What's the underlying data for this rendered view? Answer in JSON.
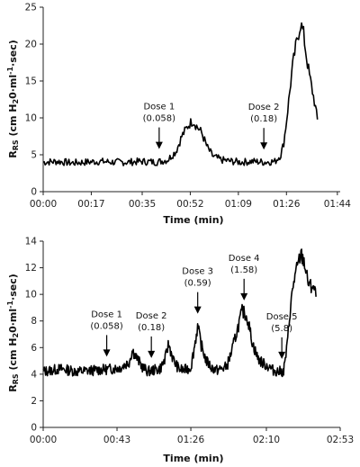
{
  "chart_data": [
    {
      "type": "line",
      "ylabel_main": "R",
      "ylabel_sub": "RS",
      "ylabel_rest": " (cm H",
      "ylabel_sub2": "2",
      "ylabel_tail": "0·ml",
      "ylabel_sup": "-1",
      "ylabel_end": "·sec)",
      "xlabel": "Time (min)",
      "ylim": [
        0,
        25
      ],
      "yticks": [
        "0",
        "5",
        "10",
        "15",
        "20",
        "25"
      ],
      "xtick_labels": [
        "00:00",
        "00:17",
        "00:35",
        "00:52",
        "01:09",
        "01:26",
        "01:44"
      ],
      "xlim_min": [
        0,
        105
      ],
      "xtick_values_min": [
        0,
        17,
        35,
        52,
        69,
        86,
        104
      ],
      "annotations": [
        {
          "label": "Dose 1",
          "value": "(0.058)",
          "x": 41
        },
        {
          "label": "Dose 2",
          "value": "(0.18)",
          "x": 78
        }
      ],
      "series": [
        {
          "x": [
            0,
            5,
            10,
            15,
            20,
            25,
            30,
            35,
            40,
            44,
            47,
            49,
            51,
            52,
            53,
            54,
            56,
            58,
            60,
            63,
            67,
            70,
            74,
            78,
            82,
            84,
            85,
            86,
            87,
            88,
            89,
            90,
            91,
            92,
            93,
            94,
            95,
            96,
            97
          ],
          "y": [
            4.0,
            4.1,
            3.9,
            4.0,
            4.1,
            4.0,
            4.0,
            4.1,
            4.0,
            4.3,
            5.5,
            7.5,
            8.8,
            9.3,
            9.6,
            9.0,
            8.0,
            6.0,
            4.8,
            4.3,
            4.1,
            4.0,
            4.1,
            4.0,
            4.1,
            5.0,
            6.5,
            9.5,
            13.0,
            16.5,
            19.0,
            21.0,
            22.8,
            21.5,
            18.5,
            16.0,
            14.0,
            12.0,
            9.5
          ]
        }
      ]
    },
    {
      "type": "line",
      "ylabel_main": "R",
      "ylabel_sub": "RS",
      "ylabel_rest": " (cm H",
      "ylabel_sub2": "2",
      "ylabel_tail": "0·ml",
      "ylabel_sup": "-1",
      "ylabel_end": "·sec)",
      "xlabel": "Time (min)",
      "ylim": [
        0,
        14
      ],
      "yticks": [
        "0",
        "2",
        "4",
        "6",
        "8",
        "10",
        "12",
        "14"
      ],
      "xtick_labels": [
        "00:00",
        "00:43",
        "01:26",
        "02:10",
        "02:53"
      ],
      "xlim_min": [
        0,
        173
      ],
      "xtick_values_min": [
        0,
        43,
        86,
        130,
        173
      ],
      "annotations": [
        {
          "label": "Dose 1",
          "value": "(0.058)",
          "x": 37
        },
        {
          "label": "Dose 2",
          "value": "(0.18)",
          "x": 63
        },
        {
          "label": "Dose 3",
          "value": "(0.59)",
          "x": 90
        },
        {
          "label": "Dose 4",
          "value": "(1.58)",
          "x": 117
        },
        {
          "label": "Dose 5",
          "value": "(5.8)",
          "x": 139
        }
      ],
      "series": [
        {
          "x": [
            0,
            10,
            20,
            30,
            40,
            45,
            50,
            52,
            55,
            58,
            61,
            64,
            68,
            71,
            73,
            76,
            79,
            82,
            86,
            88,
            90,
            92,
            95,
            98,
            101,
            104,
            107,
            110,
            113,
            116,
            119,
            122,
            125,
            128,
            131,
            134,
            137,
            140,
            142,
            144,
            146,
            148,
            150,
            152,
            154,
            156,
            157,
            158,
            159
          ],
          "y": [
            4.2,
            4.4,
            4.2,
            4.3,
            4.4,
            4.5,
            4.9,
            5.8,
            5.1,
            4.5,
            4.2,
            4.3,
            4.4,
            5.1,
            6.3,
            5.0,
            4.4,
            4.3,
            4.5,
            6.0,
            7.6,
            6.2,
            5.0,
            4.5,
            4.3,
            4.4,
            4.6,
            5.8,
            7.3,
            8.8,
            8.2,
            6.3,
            5.2,
            4.8,
            4.6,
            4.3,
            4.2,
            4.2,
            6.0,
            9.0,
            11.0,
            12.0,
            13.0,
            12.5,
            11.0,
            10.5,
            10.8,
            10.2,
            10.0
          ]
        }
      ]
    }
  ]
}
